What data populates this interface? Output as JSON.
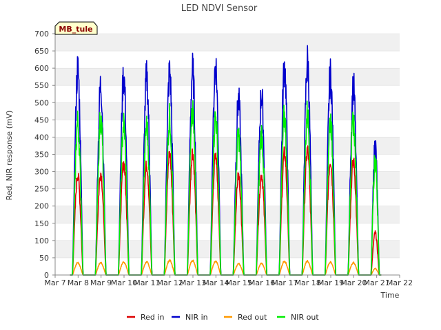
{
  "chart_data": {
    "type": "line",
    "title": "LED NDVI Sensor",
    "xlabel": "Time",
    "ylabel": "Red, NIR response (mV)",
    "site_label": "MB_tule",
    "x_ticks": [
      "Mar 7",
      "Mar 8",
      "Mar 9",
      "Mar 10",
      "Mar 11",
      "Mar 12",
      "Mar 13",
      "Mar 14",
      "Mar 15",
      "Mar 16",
      "Mar 17",
      "Mar 18",
      "Mar 19",
      "Mar 20",
      "Mar 21",
      "Mar 22"
    ],
    "y_ticks": [
      0,
      50,
      100,
      150,
      200,
      250,
      300,
      350,
      400,
      450,
      500,
      550,
      600,
      650,
      700
    ],
    "ylim": [
      0,
      700
    ],
    "xlim_days": [
      7,
      22
    ],
    "grid": true,
    "legend_position": "bottom",
    "series": [
      {
        "name": "Red in",
        "color": "#dd0000",
        "days": [
          {
            "start": 7.75,
            "end": 8.22,
            "peak": 310
          },
          {
            "start": 8.75,
            "end": 9.22,
            "peak": 315
          },
          {
            "start": 9.75,
            "end": 10.22,
            "peak": 345
          },
          {
            "start": 10.75,
            "end": 11.22,
            "peak": 340
          },
          {
            "start": 11.75,
            "end": 12.22,
            "peak": 375
          },
          {
            "start": 12.75,
            "end": 13.22,
            "peak": 380
          },
          {
            "start": 13.75,
            "end": 14.22,
            "peak": 365
          },
          {
            "start": 14.75,
            "end": 15.22,
            "peak": 305
          },
          {
            "start": 15.75,
            "end": 16.22,
            "peak": 310
          },
          {
            "start": 16.75,
            "end": 17.22,
            "peak": 375
          },
          {
            "start": 17.75,
            "end": 18.22,
            "peak": 385
          },
          {
            "start": 18.75,
            "end": 19.22,
            "peak": 355
          },
          {
            "start": 19.75,
            "end": 20.22,
            "peak": 350
          },
          {
            "start": 20.75,
            "end": 21.12,
            "peak": 130
          }
        ]
      },
      {
        "name": "NIR in",
        "color": "#0000cc",
        "days": [
          {
            "start": 7.75,
            "end": 8.22,
            "peak": 655
          },
          {
            "start": 8.75,
            "end": 9.22,
            "peak": 605
          },
          {
            "start": 9.75,
            "end": 10.22,
            "peak": 635
          },
          {
            "start": 10.75,
            "end": 11.22,
            "peak": 630
          },
          {
            "start": 11.75,
            "end": 12.22,
            "peak": 645
          },
          {
            "start": 12.75,
            "end": 13.22,
            "peak": 650
          },
          {
            "start": 13.75,
            "end": 14.22,
            "peak": 670
          },
          {
            "start": 14.75,
            "end": 15.22,
            "peak": 555
          },
          {
            "start": 15.75,
            "end": 16.22,
            "peak": 575
          },
          {
            "start": 16.75,
            "end": 17.22,
            "peak": 665
          },
          {
            "start": 17.75,
            "end": 18.22,
            "peak": 680
          },
          {
            "start": 18.75,
            "end": 19.22,
            "peak": 635
          },
          {
            "start": 19.75,
            "end": 20.22,
            "peak": 600
          },
          {
            "start": 20.75,
            "end": 21.12,
            "peak": 415
          }
        ]
      },
      {
        "name": "Red out",
        "color": "#ff9900",
        "days": [
          {
            "start": 7.75,
            "end": 8.22,
            "peak": 38
          },
          {
            "start": 8.75,
            "end": 9.22,
            "peak": 38
          },
          {
            "start": 9.75,
            "end": 10.22,
            "peak": 40
          },
          {
            "start": 10.75,
            "end": 11.22,
            "peak": 40
          },
          {
            "start": 11.75,
            "end": 12.22,
            "peak": 45
          },
          {
            "start": 12.75,
            "end": 13.22,
            "peak": 45
          },
          {
            "start": 13.75,
            "end": 14.22,
            "peak": 43
          },
          {
            "start": 14.75,
            "end": 15.22,
            "peak": 35
          },
          {
            "start": 15.75,
            "end": 16.22,
            "peak": 35
          },
          {
            "start": 16.75,
            "end": 17.22,
            "peak": 42
          },
          {
            "start": 17.75,
            "end": 18.22,
            "peak": 43
          },
          {
            "start": 18.75,
            "end": 19.22,
            "peak": 40
          },
          {
            "start": 19.75,
            "end": 20.22,
            "peak": 38
          },
          {
            "start": 20.75,
            "end": 21.12,
            "peak": 20
          }
        ]
      },
      {
        "name": "NIR out",
        "color": "#00ee00",
        "days": [
          {
            "start": 7.75,
            "end": 8.22,
            "peak": 485
          },
          {
            "start": 8.75,
            "end": 9.22,
            "peak": 500
          },
          {
            "start": 9.75,
            "end": 10.22,
            "peak": 480
          },
          {
            "start": 10.75,
            "end": 11.22,
            "peak": 475
          },
          {
            "start": 11.75,
            "end": 12.22,
            "peak": 500
          },
          {
            "start": 12.75,
            "end": 13.22,
            "peak": 510
          },
          {
            "start": 13.75,
            "end": 14.22,
            "peak": 505
          },
          {
            "start": 14.75,
            "end": 15.22,
            "peak": 445
          },
          {
            "start": 15.75,
            "end": 16.22,
            "peak": 450
          },
          {
            "start": 16.75,
            "end": 17.22,
            "peak": 505
          },
          {
            "start": 17.75,
            "end": 18.22,
            "peak": 515
          },
          {
            "start": 18.75,
            "end": 19.22,
            "peak": 495
          },
          {
            "start": 19.75,
            "end": 20.22,
            "peak": 490
          },
          {
            "start": 20.75,
            "end": 21.12,
            "peak": 370
          }
        ]
      }
    ]
  },
  "colors": {
    "band": "#f0f0f0",
    "grid": "#dddddd",
    "axis": "#888888",
    "site_label_bg": "#ffffcc"
  }
}
